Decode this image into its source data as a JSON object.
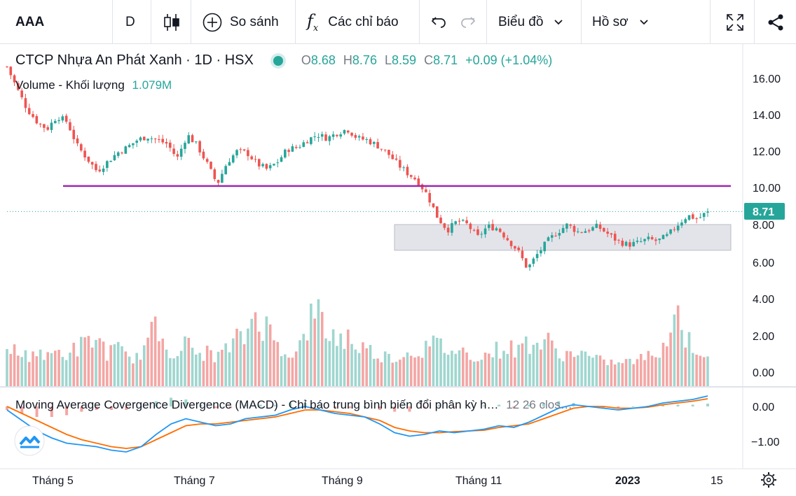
{
  "toolbar": {
    "symbol": "AAA",
    "interval": "D",
    "compare": "So sánh",
    "indicators": "Các chỉ báo",
    "chart_menu": "Biểu đồ",
    "profile_menu": "Hồ sơ"
  },
  "legend": {
    "title": "CTCP Nhựa An Phát Xanh · 1D · HSX",
    "o_label": "O",
    "o": "8.68",
    "h_label": "H",
    "h": "8.76",
    "l_label": "L",
    "l": "8.59",
    "c_label": "C",
    "c": "8.71",
    "change": "+0.09 (+1.04%)",
    "volume_label": "Volume - Khối lượng",
    "volume_value": "1.079M",
    "macd_label": "Moving Average Covergence Divergence (MACD) - Chỉ báo trung bình biến đổi phân kỳ h…",
    "macd_params": "12 26 clos…"
  },
  "colors": {
    "up": "#26a69a",
    "down": "#ef5350",
    "up_vol": "#9fd6cf",
    "down_vol": "#f3a6a4",
    "resistance": "#9c27b0",
    "zone": "#e3e4ea",
    "macd_line": "#2196f3",
    "signal_line": "#ff6d00"
  },
  "chart_data": [
    {
      "type": "candlestick",
      "title": "CTCP Nhựa An Phát Xanh · 1D · HSX",
      "ylim": [
        4,
        17
      ],
      "y_ticks": [
        "16.00",
        "14.00",
        "12.00",
        "10.00",
        "8.00",
        "6.00",
        "4.00"
      ],
      "x_ticks": [
        "Tháng 5",
        "Tháng 7",
        "Tháng 9",
        "Tháng 11",
        "2023",
        "15"
      ],
      "last_price_label": "8.71",
      "last_price": 8.71,
      "resistance_level": 10.1,
      "zone": [
        6.6,
        8.0
      ],
      "close_path": [
        16.6,
        15.4,
        14.3,
        13.6,
        13.2,
        13.9,
        13.6,
        12.3,
        11.6,
        10.9,
        11.4,
        11.9,
        12.2,
        12.6,
        12.8,
        12.6,
        12.4,
        11.6,
        12.9,
        12.3,
        11.3,
        10.2,
        11.4,
        12.0,
        11.9,
        11.3,
        11.0,
        11.4,
        12.1,
        12.2,
        12.6,
        12.9,
        12.7,
        13.0,
        13.2,
        12.7,
        12.6,
        12.3,
        11.9,
        11.3,
        10.8,
        10.4,
        9.6,
        8.4,
        7.7,
        8.2,
        8.0,
        7.3,
        7.9,
        7.8,
        7.2,
        6.6,
        5.6,
        6.4,
        7.1,
        7.6,
        8.0,
        7.6,
        7.7,
        7.9,
        7.5,
        7.1,
        6.9,
        7.0,
        7.2,
        7.1,
        7.4,
        8.0,
        8.5,
        8.3,
        8.71
      ]
    },
    {
      "type": "bar",
      "title": "Volume - Khối lượng",
      "ylim": [
        0,
        4.5
      ],
      "y_ticks": [
        "4.00",
        "2.00",
        "0.00"
      ],
      "values": [
        1.5,
        1.1,
        0.9,
        1.3,
        0.8,
        1.2,
        1.0,
        1.4,
        1.6,
        2.0,
        1.1,
        1.3,
        0.9,
        0.8,
        1.7,
        2.5,
        1.4,
        1.2,
        1.6,
        1.0,
        1.1,
        0.9,
        1.3,
        1.8,
        2.2,
        3.8,
        2.4,
        1.6,
        1.2,
        1.0,
        2.7,
        3.3,
        2.3,
        1.9,
        2.0,
        1.5,
        1.3,
        1.0,
        0.9,
        0.8,
        1.1,
        1.2,
        1.4,
        1.6,
        1.3,
        1.2,
        1.1,
        0.9,
        1.0,
        1.3,
        1.4,
        1.2,
        1.8,
        1.6,
        1.7,
        1.1,
        1.0,
        1.2,
        0.9,
        0.7,
        0.6,
        0.5,
        0.6,
        0.7,
        0.9,
        1.2,
        2.0,
        3.4,
        1.8,
        1.3,
        1.1
      ]
    },
    {
      "type": "line",
      "title": "Moving Average Covergence Divergence (MACD)",
      "ylim": [
        -1.5,
        0.3
      ],
      "y_ticks": [
        "0.00",
        "−1.00"
      ],
      "series": [
        {
          "name": "MACD",
          "values": [
            -0.1,
            -0.4,
            -0.7,
            -0.9,
            -1.05,
            -1.1,
            -1.15,
            -1.25,
            -1.3,
            -1.15,
            -0.8,
            -0.5,
            -0.35,
            -0.45,
            -0.55,
            -0.5,
            -0.35,
            -0.3,
            -0.25,
            -0.1,
            0.0,
            -0.1,
            -0.2,
            -0.25,
            -0.3,
            -0.5,
            -0.75,
            -0.85,
            -0.8,
            -0.7,
            -0.75,
            -0.7,
            -0.65,
            -0.55,
            -0.6,
            -0.45,
            -0.25,
            -0.05,
            0.05,
            0.0,
            -0.05,
            -0.1,
            -0.05,
            0.0,
            0.1,
            0.15,
            0.2,
            0.3
          ]
        },
        {
          "name": "Signal",
          "values": [
            0.0,
            -0.2,
            -0.4,
            -0.6,
            -0.8,
            -0.95,
            -1.05,
            -1.15,
            -1.2,
            -1.15,
            -0.95,
            -0.75,
            -0.55,
            -0.5,
            -0.5,
            -0.45,
            -0.4,
            -0.35,
            -0.3,
            -0.2,
            -0.1,
            -0.1,
            -0.15,
            -0.2,
            -0.3,
            -0.4,
            -0.6,
            -0.7,
            -0.75,
            -0.75,
            -0.72,
            -0.7,
            -0.68,
            -0.6,
            -0.55,
            -0.5,
            -0.35,
            -0.2,
            -0.05,
            0.0,
            0.0,
            -0.05,
            -0.05,
            -0.02,
            0.05,
            0.1,
            0.15,
            0.22
          ]
        }
      ]
    }
  ]
}
